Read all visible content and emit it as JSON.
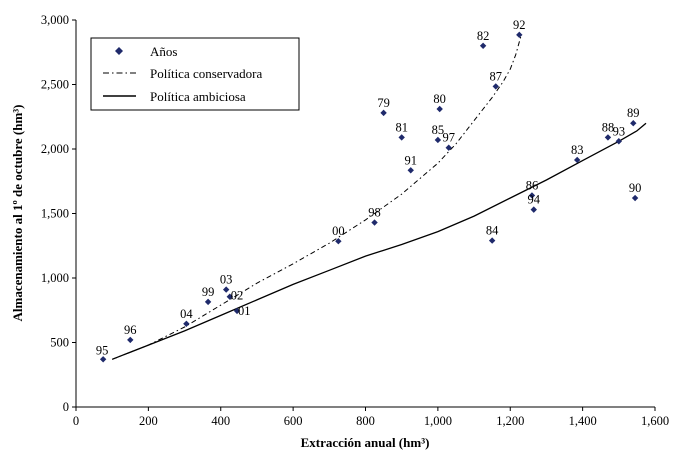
{
  "chart_data": {
    "type": "scatter",
    "xlabel": "Extracción anual (hm³)",
    "ylabel": "Almacenamiento al 1º de octubre (hm³)",
    "xlim": [
      0,
      1600
    ],
    "ylim": [
      0,
      3000
    ],
    "x_ticks": [
      0,
      200,
      400,
      600,
      800,
      1000,
      1200,
      1400,
      1600
    ],
    "y_ticks": [
      0,
      500,
      1000,
      1500,
      2000,
      2500,
      3000
    ],
    "x_tick_labels": [
      "0",
      "200",
      "400",
      "600",
      "800",
      "1,000",
      "1,200",
      "1,400",
      "1,600"
    ],
    "y_tick_labels": [
      "0",
      "500",
      "1,000",
      "1,500",
      "2,000",
      "2,500",
      "3,000"
    ],
    "grid": false,
    "legend_position": "top-left",
    "legend": [
      {
        "label": "Años",
        "marker": "diamond"
      },
      {
        "label": "Política conservadora",
        "line": "dash-dot"
      },
      {
        "label": "Política ambiciosa",
        "line": "solid"
      }
    ],
    "marker_color": "#1f2a6b",
    "points": [
      {
        "label": "95",
        "x": 75,
        "y": 370
      },
      {
        "label": "96",
        "x": 150,
        "y": 520
      },
      {
        "label": "04",
        "x": 305,
        "y": 645
      },
      {
        "label": "99",
        "x": 365,
        "y": 815
      },
      {
        "label": "03",
        "x": 415,
        "y": 910
      },
      {
        "label": "02",
        "x": 425,
        "y": 855
      },
      {
        "label": "01",
        "x": 445,
        "y": 745
      },
      {
        "label": "00",
        "x": 725,
        "y": 1285
      },
      {
        "label": "98",
        "x": 825,
        "y": 1430
      },
      {
        "label": "79",
        "x": 850,
        "y": 2280
      },
      {
        "label": "81",
        "x": 900,
        "y": 2090
      },
      {
        "label": "91",
        "x": 925,
        "y": 1835
      },
      {
        "label": "80",
        "x": 1005,
        "y": 2310
      },
      {
        "label": "85",
        "x": 1000,
        "y": 2070
      },
      {
        "label": "97",
        "x": 1030,
        "y": 2010
      },
      {
        "label": "82",
        "x": 1125,
        "y": 2800
      },
      {
        "label": "92",
        "x": 1225,
        "y": 2885
      },
      {
        "label": "87",
        "x": 1160,
        "y": 2485
      },
      {
        "label": "84",
        "x": 1150,
        "y": 1290
      },
      {
        "label": "86",
        "x": 1260,
        "y": 1640
      },
      {
        "label": "94",
        "x": 1265,
        "y": 1530
      },
      {
        "label": "83",
        "x": 1385,
        "y": 1915
      },
      {
        "label": "88",
        "x": 1470,
        "y": 2090
      },
      {
        "label": "93",
        "x": 1500,
        "y": 2060
      },
      {
        "label": "89",
        "x": 1540,
        "y": 2200
      },
      {
        "label": "90",
        "x": 1545,
        "y": 1620
      }
    ],
    "curves": [
      {
        "name": "Política conservadora",
        "style": "dash-dot",
        "x": [
          100,
          200,
          300,
          400,
          500,
          600,
          700,
          800,
          900,
          1000,
          1050,
          1100,
          1150,
          1180,
          1200,
          1215,
          1230
        ],
        "y": [
          370,
          480,
          620,
          790,
          960,
          1110,
          1270,
          1450,
          1650,
          1890,
          2040,
          2220,
          2400,
          2520,
          2620,
          2730,
          2880
        ]
      },
      {
        "name": "Política ambiciosa",
        "style": "solid",
        "x": [
          100,
          200,
          300,
          400,
          500,
          600,
          700,
          800,
          900,
          1000,
          1100,
          1200,
          1300,
          1400,
          1500,
          1550,
          1575
        ],
        "y": [
          370,
          480,
          590,
          710,
          830,
          950,
          1060,
          1170,
          1260,
          1360,
          1480,
          1620,
          1760,
          1910,
          2060,
          2140,
          2200
        ]
      }
    ]
  }
}
